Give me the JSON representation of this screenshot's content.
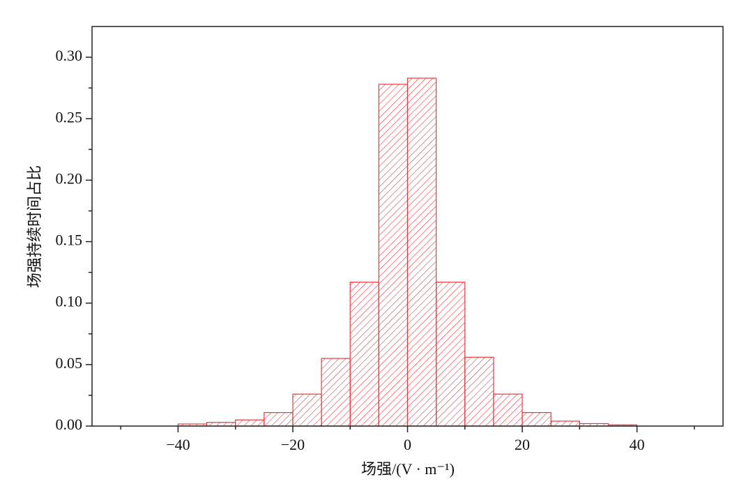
{
  "chart_data": {
    "type": "histogram",
    "xlabel": "场强/(V · m⁻¹)",
    "ylabel": "场强持续时间占比",
    "bins": [
      -40,
      -35,
      -30,
      -25,
      -20,
      -15,
      -10,
      -5,
      0,
      5,
      10,
      15,
      20,
      25,
      30,
      35,
      40
    ],
    "values": [
      0.0017,
      0.003,
      0.005,
      0.011,
      0.026,
      0.055,
      0.117,
      0.278,
      0.283,
      0.117,
      0.056,
      0.026,
      0.011,
      0.004,
      0.002,
      0.001
    ],
    "color": "#e8383d",
    "xlim": [
      -55,
      55
    ],
    "ylim": [
      0,
      0.325
    ],
    "xticks": [
      {
        "value": -40,
        "label": "−40"
      },
      {
        "value": -20,
        "label": "−20"
      },
      0,
      20,
      40
    ],
    "xticks_minor": [
      -50,
      -30,
      -10,
      10,
      30,
      50
    ],
    "yticks": [
      {
        "value": 0,
        "label": "0.00"
      },
      {
        "value": 0.05,
        "label": "0.05"
      },
      {
        "value": 0.1,
        "label": "0.10"
      },
      {
        "value": 0.15,
        "label": "0.15"
      },
      {
        "value": 0.2,
        "label": "0.20"
      },
      {
        "value": 0.25,
        "label": "0.25"
      },
      {
        "value": 0.3,
        "label": "0.30"
      }
    ],
    "yticks_minor": [
      0.025,
      0.075,
      0.125,
      0.175,
      0.225,
      0.275
    ],
    "hatch": true
  }
}
